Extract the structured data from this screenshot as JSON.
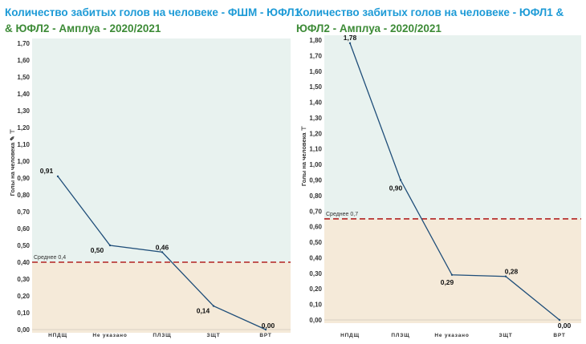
{
  "titles": {
    "left": {
      "part1": "Количество забитых голов на человеке - ФШМ - ЮФЛ1",
      "part2": "& ЮФЛ2 - Амплуа - 2020/2021"
    },
    "right": {
      "part1": "Количество забитых голов на человеке - ЮФЛ1 &",
      "part2": "ЮФЛ2 - Амплуа - 2020/2021"
    }
  },
  "colors": {
    "title_blue": "#1c9ad6",
    "title_green": "#3d8b37",
    "upper_band": "#e8f2ef",
    "lower_band": "#f5ead9",
    "line": "#1f4e79",
    "average_line": "#b22222"
  },
  "chart_data": [
    {
      "type": "line",
      "title": "Количество забитых голов на человеке - ФШМ - ЮФЛ1 & ЮФЛ2 - Амплуа - 2020/2021",
      "ylabel": "Голы на человека",
      "ylabel_suffix": "✎ ⊤",
      "categories": [
        "НПДЩ",
        "Не указано",
        "ПЛЗЩ",
        "ЗЩТ",
        "ВРТ"
      ],
      "values": [
        0.91,
        0.5,
        0.46,
        0.14,
        0.0
      ],
      "value_labels": [
        "0,91",
        "0,50",
        "0,46",
        "0,14",
        "0,00"
      ],
      "ylim": [
        0,
        1.7
      ],
      "yticks": [
        "0,00",
        "0,10",
        "0,20",
        "0,30",
        "0,40",
        "0,50",
        "0,60",
        "0,70",
        "0,80",
        "0,90",
        "1,00",
        "1,10",
        "1,20",
        "1,30",
        "1,40",
        "1,50",
        "1,60",
        "1,70"
      ],
      "average": 0.4,
      "average_label": "Среднее 0,4",
      "grid": false,
      "legend": "none"
    },
    {
      "type": "line",
      "title": "Количество забитых голов на человеке - ЮФЛ1 & ЮФЛ2 - Амплуа - 2020/2021",
      "ylabel": "Голы на человека",
      "ylabel_suffix": "⊤",
      "categories": [
        "НПДЩ",
        "ПЛЗЩ",
        "Не указано",
        "ЗЩТ",
        "ВРТ"
      ],
      "values": [
        1.78,
        0.9,
        0.29,
        0.28,
        0.0
      ],
      "value_labels": [
        "1,78",
        "0,90",
        "0,29",
        "0,28",
        "0,00"
      ],
      "ylim": [
        0,
        1.8
      ],
      "yticks": [
        "0,00",
        "0,10",
        "0,20",
        "0,30",
        "0,40",
        "0,50",
        "0,60",
        "0,70",
        "0,80",
        "0,90",
        "1,00",
        "1,10",
        "1,20",
        "1,30",
        "1,40",
        "1,50",
        "1,60",
        "1,70",
        "1,80"
      ],
      "average": 0.65,
      "average_label": "Среднее 0,7",
      "grid": false,
      "legend": "none"
    }
  ]
}
